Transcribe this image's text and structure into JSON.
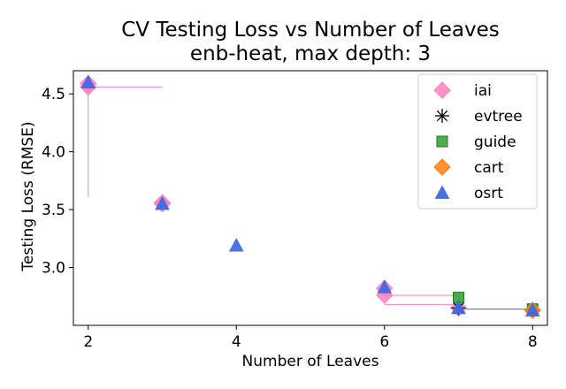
{
  "chart_data": {
    "type": "scatter",
    "title": "CV Testing Loss vs Number of Leaves",
    "subtitle": "enb-heat, max depth: 3",
    "xlabel": "Number of Leaves",
    "ylabel": "Testing Loss (RMSE)",
    "xlim": [
      1.8,
      8.2
    ],
    "ylim": [
      2.5,
      4.7
    ],
    "xticks": [
      2,
      4,
      6,
      8
    ],
    "yticks": [
      3.0,
      3.5,
      4.0,
      4.5
    ],
    "xtick_labels": [
      "2",
      "4",
      "6",
      "8"
    ],
    "ytick_labels": [
      "3.0",
      "3.5",
      "4.0",
      "4.5"
    ],
    "grid": false,
    "legend_position": "top-right",
    "series": [
      {
        "name": "iai",
        "color": "#ff7fbf",
        "marker": "diamond",
        "points": [
          {
            "x": 2,
            "y": 4.56
          },
          {
            "x": 2,
            "y": 4.59
          },
          {
            "x": 3,
            "y": 3.56
          },
          {
            "x": 3,
            "y": 3.55
          },
          {
            "x": 6,
            "y": 2.82
          },
          {
            "x": 6,
            "y": 2.76
          },
          {
            "x": 7,
            "y": 2.65
          },
          {
            "x": 8,
            "y": 2.63
          }
        ],
        "error_bars": [
          {
            "x": 2,
            "y": 4.56,
            "ymin": 3.61,
            "ymax": 4.59,
            "xmin": 2,
            "xmax": 3
          }
        ],
        "error_lines": [
          {
            "x1": 6,
            "y1": 2.76,
            "x2": 7,
            "y2": 2.76
          },
          {
            "x1": 6,
            "y1": 2.68,
            "x2": 7,
            "y2": 2.68
          }
        ]
      },
      {
        "name": "evtree",
        "color": "#000000",
        "marker": "asterisk",
        "points": [
          {
            "x": 7,
            "y": 2.65
          },
          {
            "x": 8,
            "y": 2.64
          }
        ]
      },
      {
        "name": "guide",
        "color": "#2ca02c",
        "marker": "square",
        "points": [
          {
            "x": 7,
            "y": 2.74
          },
          {
            "x": 8,
            "y": 2.64
          }
        ]
      },
      {
        "name": "cart",
        "color": "#ff7f0e",
        "marker": "diamond",
        "points": [
          {
            "x": 8,
            "y": 2.63
          }
        ]
      },
      {
        "name": "osrt",
        "color": "#4169e1",
        "marker": "triangle",
        "points": [
          {
            "x": 2,
            "y": 4.6
          },
          {
            "x": 3,
            "y": 3.55
          },
          {
            "x": 4,
            "y": 3.19
          },
          {
            "x": 6,
            "y": 2.83
          },
          {
            "x": 7,
            "y": 2.65
          },
          {
            "x": 8,
            "y": 2.63
          }
        ],
        "error_lines": [
          {
            "x1": 7,
            "y1": 2.64,
            "x2": 8,
            "y2": 2.64
          }
        ]
      }
    ]
  }
}
